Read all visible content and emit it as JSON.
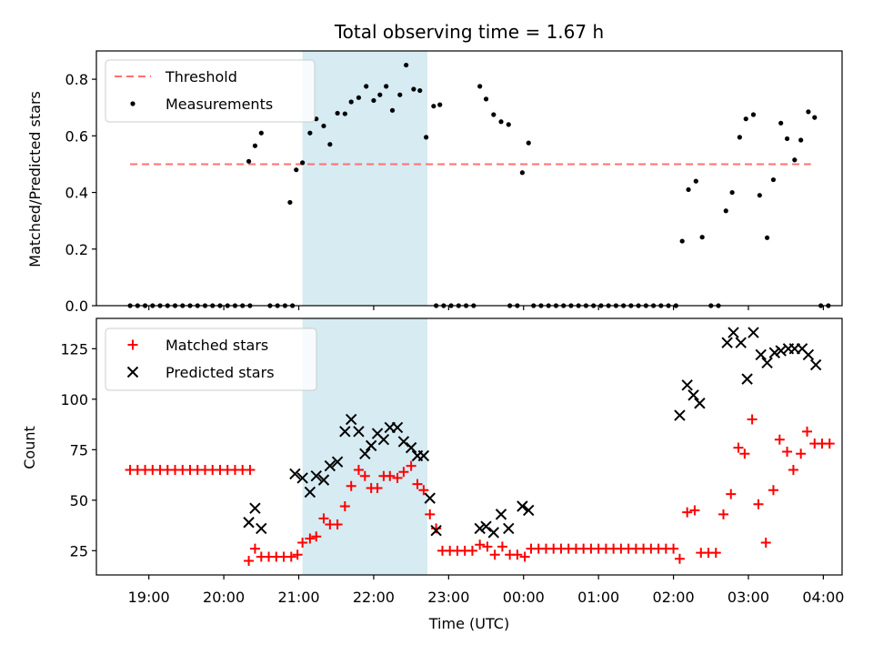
{
  "figure": {
    "title": "Total observing time = 1.67 h",
    "xlabel": "Time (UTC)",
    "xticks": [
      {
        "label": "19:00",
        "h": 19
      },
      {
        "label": "20:00",
        "h": 20
      },
      {
        "label": "21:00",
        "h": 21
      },
      {
        "label": "22:00",
        "h": 22
      },
      {
        "label": "23:00",
        "h": 23
      },
      {
        "label": "00:00",
        "h": 24
      },
      {
        "label": "01:00",
        "h": 25
      },
      {
        "label": "02:00",
        "h": 26
      },
      {
        "label": "03:00",
        "h": 27
      },
      {
        "label": "04:00",
        "h": 28
      }
    ],
    "xlim": [
      18.3,
      28.25
    ],
    "observing_window": {
      "start": "21:03",
      "end": "22:43",
      "color": "#add8e6"
    }
  },
  "chart_data": [
    {
      "type": "scatter",
      "panel": "top",
      "ylabel": "Matched/Predicted stars",
      "ylim": [
        0,
        0.9
      ],
      "yticks": [
        "0.0",
        "0.2",
        "0.4",
        "0.6",
        "0.8"
      ],
      "legend_position": "top-left",
      "threshold": {
        "name": "Threshold",
        "value": 0.5,
        "x_range": [
          "18:45",
          "27:50"
        ],
        "color": "#ff7070"
      },
      "series": [
        {
          "name": "Measurements",
          "color": "#000000",
          "marker": "dot",
          "points": [
            [
              "18:45",
              0
            ],
            [
              "18:51",
              0
            ],
            [
              "18:57",
              0
            ],
            [
              "19:03",
              0
            ],
            [
              "19:09",
              0
            ],
            [
              "19:15",
              0
            ],
            [
              "19:21",
              0
            ],
            [
              "19:27",
              0
            ],
            [
              "19:33",
              0
            ],
            [
              "19:39",
              0
            ],
            [
              "19:45",
              0
            ],
            [
              "19:51",
              0
            ],
            [
              "19:57",
              0
            ],
            [
              "20:03",
              0
            ],
            [
              "20:09",
              0
            ],
            [
              "20:15",
              0
            ],
            [
              "20:21",
              0
            ],
            [
              "20:20",
              0.51
            ],
            [
              "20:25",
              0.565
            ],
            [
              "20:30",
              0.61
            ],
            [
              "20:37",
              0
            ],
            [
              "20:43",
              0
            ],
            [
              "20:49",
              0
            ],
            [
              "20:55",
              0
            ],
            [
              "20:53",
              0.365
            ],
            [
              "20:58",
              0.48
            ],
            [
              "21:03",
              0.505
            ],
            [
              "21:09",
              0.61
            ],
            [
              "21:14",
              0.66
            ],
            [
              "21:20",
              0.635
            ],
            [
              "21:25",
              0.57
            ],
            [
              "21:31",
              0.68
            ],
            [
              "21:37",
              0.678
            ],
            [
              "21:42",
              0.72
            ],
            [
              "21:48",
              0.735
            ],
            [
              "21:54",
              0.775
            ],
            [
              "22:00",
              0.725
            ],
            [
              "22:05",
              0.745
            ],
            [
              "22:10",
              0.775
            ],
            [
              "22:15",
              0.69
            ],
            [
              "22:21",
              0.745
            ],
            [
              "22:26",
              0.85
            ],
            [
              "22:32",
              0.765
            ],
            [
              "22:37",
              0.76
            ],
            [
              "22:42",
              0.595
            ],
            [
              "22:48",
              0.705
            ],
            [
              "22:53",
              0.71
            ],
            [
              "22:50",
              0
            ],
            [
              "22:56",
              0
            ],
            [
              "23:02",
              0
            ],
            [
              "23:08",
              0
            ],
            [
              "23:14",
              0
            ],
            [
              "23:20",
              0
            ],
            [
              "23:25",
              0.775
            ],
            [
              "23:30",
              0.73
            ],
            [
              "23:36",
              0.675
            ],
            [
              "23:42",
              0.65
            ],
            [
              "23:48",
              0.64
            ],
            [
              "23:49",
              0
            ],
            [
              "23:55",
              0
            ],
            [
              "23:59",
              0.47
            ],
            [
              "24:04",
              0.575
            ],
            [
              "24:08",
              0
            ],
            [
              "24:14",
              0
            ],
            [
              "24:20",
              0
            ],
            [
              "24:26",
              0
            ],
            [
              "24:32",
              0
            ],
            [
              "24:38",
              0
            ],
            [
              "24:44",
              0
            ],
            [
              "24:50",
              0
            ],
            [
              "24:56",
              0
            ],
            [
              "25:02",
              0
            ],
            [
              "25:08",
              0
            ],
            [
              "25:14",
              0
            ],
            [
              "25:20",
              0
            ],
            [
              "25:26",
              0
            ],
            [
              "25:32",
              0
            ],
            [
              "25:38",
              0
            ],
            [
              "25:44",
              0
            ],
            [
              "25:50",
              0
            ],
            [
              "25:56",
              0
            ],
            [
              "26:02",
              0
            ],
            [
              "26:07",
              0.228
            ],
            [
              "26:12",
              0.41
            ],
            [
              "26:18",
              0.44
            ],
            [
              "26:23",
              0.242
            ],
            [
              "26:30",
              0
            ],
            [
              "26:36",
              0
            ],
            [
              "26:42",
              0.335
            ],
            [
              "26:47",
              0.4
            ],
            [
              "26:53",
              0.595
            ],
            [
              "26:58",
              0.66
            ],
            [
              "27:04",
              0.675
            ],
            [
              "27:09",
              0.39
            ],
            [
              "27:15",
              0.24
            ],
            [
              "27:20",
              0.445
            ],
            [
              "27:26",
              0.645
            ],
            [
              "27:31",
              0.59
            ],
            [
              "27:37",
              0.515
            ],
            [
              "27:42",
              0.585
            ],
            [
              "27:48",
              0.685
            ],
            [
              "27:53",
              0.665
            ],
            [
              "27:58",
              0
            ],
            [
              "28:04",
              0
            ]
          ]
        }
      ]
    },
    {
      "type": "scatter",
      "panel": "bottom",
      "ylabel": "Count",
      "ylim": [
        13,
        140
      ],
      "yticks": [
        "25",
        "50",
        "75",
        "100",
        "125"
      ],
      "legend_position": "top-left",
      "series": [
        {
          "name": "Matched stars",
          "color": "#ff0000",
          "marker": "plus",
          "points": [
            [
              "18:45",
              65
            ],
            [
              "18:51",
              65
            ],
            [
              "18:57",
              65
            ],
            [
              "19:03",
              65
            ],
            [
              "19:09",
              65
            ],
            [
              "19:15",
              65
            ],
            [
              "19:21",
              65
            ],
            [
              "19:27",
              65
            ],
            [
              "19:33",
              65
            ],
            [
              "19:39",
              65
            ],
            [
              "19:45",
              65
            ],
            [
              "19:51",
              65
            ],
            [
              "19:57",
              65
            ],
            [
              "20:03",
              65
            ],
            [
              "20:09",
              65
            ],
            [
              "20:15",
              65
            ],
            [
              "20:21",
              65
            ],
            [
              "20:20",
              20
            ],
            [
              "20:25",
              26
            ],
            [
              "20:30",
              22
            ],
            [
              "20:36",
              22
            ],
            [
              "20:42",
              22
            ],
            [
              "20:48",
              22
            ],
            [
              "20:54",
              22
            ],
            [
              "20:59",
              23
            ],
            [
              "21:03",
              29
            ],
            [
              "21:09",
              31
            ],
            [
              "21:14",
              32
            ],
            [
              "21:20",
              41
            ],
            [
              "21:25",
              38
            ],
            [
              "21:31",
              38
            ],
            [
              "21:37",
              47
            ],
            [
              "21:42",
              57
            ],
            [
              "21:48",
              65
            ],
            [
              "21:53",
              62
            ],
            [
              "21:58",
              56
            ],
            [
              "22:03",
              56
            ],
            [
              "22:08",
              62
            ],
            [
              "22:13",
              62
            ],
            [
              "22:19",
              61
            ],
            [
              "22:24",
              64
            ],
            [
              "22:30",
              67
            ],
            [
              "22:35",
              58
            ],
            [
              "22:40",
              55
            ],
            [
              "22:45",
              43
            ],
            [
              "22:50",
              36
            ],
            [
              "22:55",
              25
            ],
            [
              "23:01",
              25
            ],
            [
              "23:07",
              25
            ],
            [
              "23:13",
              25
            ],
            [
              "23:19",
              25
            ],
            [
              "23:25",
              28
            ],
            [
              "23:31",
              27
            ],
            [
              "23:37",
              23
            ],
            [
              "23:43",
              27
            ],
            [
              "23:49",
              23
            ],
            [
              "23:55",
              23
            ],
            [
              "24:01",
              22
            ],
            [
              "24:06",
              26
            ],
            [
              "24:12",
              26
            ],
            [
              "24:18",
              26
            ],
            [
              "24:24",
              26
            ],
            [
              "24:30",
              26
            ],
            [
              "24:36",
              26
            ],
            [
              "24:42",
              26
            ],
            [
              "24:48",
              26
            ],
            [
              "24:54",
              26
            ],
            [
              "25:00",
              26
            ],
            [
              "25:06",
              26
            ],
            [
              "25:12",
              26
            ],
            [
              "25:18",
              26
            ],
            [
              "25:24",
              26
            ],
            [
              "25:30",
              26
            ],
            [
              "25:36",
              26
            ],
            [
              "25:42",
              26
            ],
            [
              "25:48",
              26
            ],
            [
              "25:54",
              26
            ],
            [
              "26:00",
              26
            ],
            [
              "26:05",
              21
            ],
            [
              "26:11",
              44
            ],
            [
              "26:17",
              45
            ],
            [
              "26:22",
              24
            ],
            [
              "26:28",
              24
            ],
            [
              "26:34",
              24
            ],
            [
              "26:40",
              43
            ],
            [
              "26:46",
              53
            ],
            [
              "26:52",
              76
            ],
            [
              "26:57",
              73
            ],
            [
              "27:03",
              90
            ],
            [
              "27:08",
              48
            ],
            [
              "27:14",
              29
            ],
            [
              "27:20",
              55
            ],
            [
              "27:25",
              80
            ],
            [
              "27:31",
              74
            ],
            [
              "27:36",
              65
            ],
            [
              "27:42",
              73
            ],
            [
              "27:47",
              84
            ],
            [
              "27:53",
              78
            ],
            [
              "27:59",
              78
            ],
            [
              "28:05",
              78
            ]
          ]
        },
        {
          "name": "Predicted stars",
          "color": "#000000",
          "marker": "x",
          "points": [
            [
              "20:20",
              39
            ],
            [
              "20:25",
              46
            ],
            [
              "20:30",
              36
            ],
            [
              "20:57",
              63
            ],
            [
              "21:03",
              61
            ],
            [
              "21:09",
              54
            ],
            [
              "21:14",
              62
            ],
            [
              "21:20",
              60
            ],
            [
              "21:25",
              67
            ],
            [
              "21:31",
              69
            ],
            [
              "21:37",
              84
            ],
            [
              "21:42",
              90
            ],
            [
              "21:48",
              84
            ],
            [
              "21:53",
              73
            ],
            [
              "21:58",
              77
            ],
            [
              "22:03",
              83
            ],
            [
              "22:08",
              80
            ],
            [
              "22:13",
              86
            ],
            [
              "22:19",
              86
            ],
            [
              "22:24",
              79
            ],
            [
              "22:30",
              76
            ],
            [
              "22:35",
              72
            ],
            [
              "22:40",
              72
            ],
            [
              "22:45",
              51
            ],
            [
              "22:50",
              35
            ],
            [
              "23:25",
              36
            ],
            [
              "23:30",
              37
            ],
            [
              "23:36",
              34
            ],
            [
              "23:42",
              43
            ],
            [
              "23:48",
              36
            ],
            [
              "23:59",
              47
            ],
            [
              "24:04",
              45
            ],
            [
              "26:05",
              92
            ],
            [
              "26:11",
              107
            ],
            [
              "26:16",
              102
            ],
            [
              "26:21",
              98
            ],
            [
              "26:43",
              128
            ],
            [
              "26:48",
              133
            ],
            [
              "26:54",
              128
            ],
            [
              "26:59",
              110
            ],
            [
              "27:04",
              133
            ],
            [
              "27:10",
              122
            ],
            [
              "27:15",
              118
            ],
            [
              "27:21",
              123
            ],
            [
              "27:26",
              124
            ],
            [
              "27:32",
              125
            ],
            [
              "27:37",
              125
            ],
            [
              "27:43",
              125
            ],
            [
              "27:48",
              122
            ],
            [
              "27:54",
              117
            ]
          ]
        }
      ]
    }
  ]
}
